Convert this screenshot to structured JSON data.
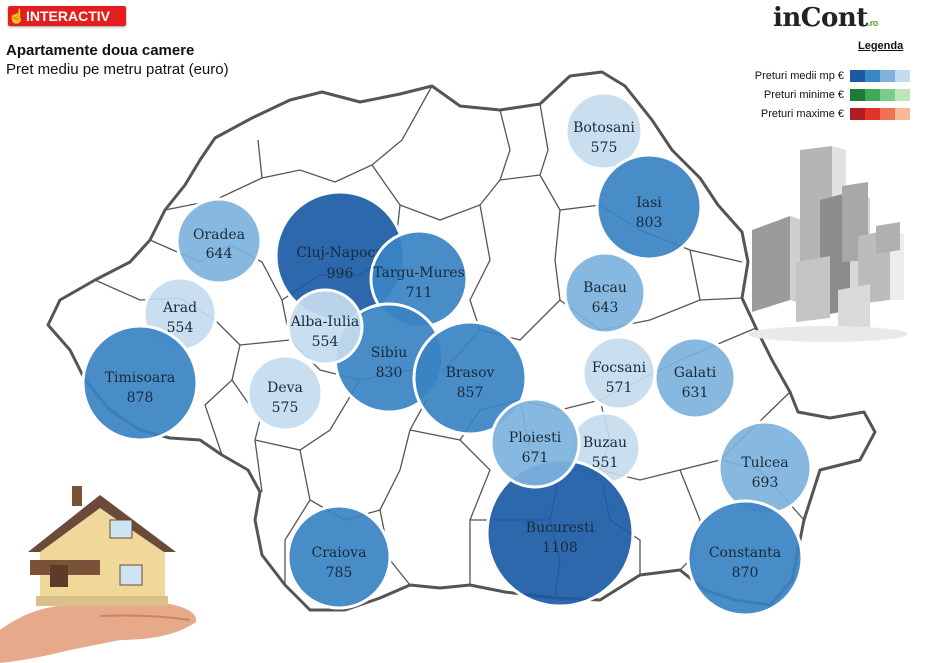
{
  "badge": {
    "label": "INTERACTIV",
    "icon": "hand-pointer-icon"
  },
  "title": "Apartamente doua camere",
  "subtitle": "Pret mediu pe metru patrat (euro)",
  "logo": {
    "name": "inCont",
    "suffix": ".ro"
  },
  "legend": {
    "title": "Legenda",
    "rows": [
      {
        "label": "Preturi medii mp €",
        "colors": [
          "#1a5aa3",
          "#3b86c6",
          "#7fb3de",
          "#c3dbee"
        ]
      },
      {
        "label": "Preturi minime €",
        "colors": [
          "#1e7a3a",
          "#3fa95a",
          "#7ccb86",
          "#c0e5b5"
        ]
      },
      {
        "label": "Preturi maxime €",
        "colors": [
          "#b01c22",
          "#e0332c",
          "#f2704f",
          "#f8b796"
        ]
      }
    ]
  },
  "cities": [
    {
      "name": "Botosani",
      "value": "575",
      "tone": "lightest"
    },
    {
      "name": "Iasi",
      "value": "803",
      "tone": "medium"
    },
    {
      "name": "Oradea",
      "value": "644",
      "tone": "light"
    },
    {
      "name": "Cluj-Napoca",
      "value": "996",
      "tone": "dark"
    },
    {
      "name": "Targu-Mures",
      "value": "711",
      "tone": "medium"
    },
    {
      "name": "Bacau",
      "value": "643",
      "tone": "light"
    },
    {
      "name": "Arad",
      "value": "554",
      "tone": "lightest"
    },
    {
      "name": "Alba-Iulia",
      "value": "554",
      "tone": "lightest"
    },
    {
      "name": "Sibiu",
      "value": "830",
      "tone": "medium"
    },
    {
      "name": "Brasov",
      "value": "857",
      "tone": "medium"
    },
    {
      "name": "Timisoara",
      "value": "878",
      "tone": "medium"
    },
    {
      "name": "Deva",
      "value": "575",
      "tone": "lightest"
    },
    {
      "name": "Focsani",
      "value": "571",
      "tone": "lightest"
    },
    {
      "name": "Galati",
      "value": "631",
      "tone": "light"
    },
    {
      "name": "Ploiesti",
      "value": "671",
      "tone": "light"
    },
    {
      "name": "Buzau",
      "value": "551",
      "tone": "lightest"
    },
    {
      "name": "Tulcea",
      "value": "693",
      "tone": "light"
    },
    {
      "name": "Bucuresti",
      "value": "1108",
      "tone": "dark"
    },
    {
      "name": "Craiova",
      "value": "785",
      "tone": "medium"
    },
    {
      "name": "Constanta",
      "value": "870",
      "tone": "medium"
    }
  ],
  "tones": {
    "dark": "#1b5ba5",
    "medium": "#3a83c3",
    "light": "#7db2dd",
    "lightest": "#c4dcef"
  }
}
